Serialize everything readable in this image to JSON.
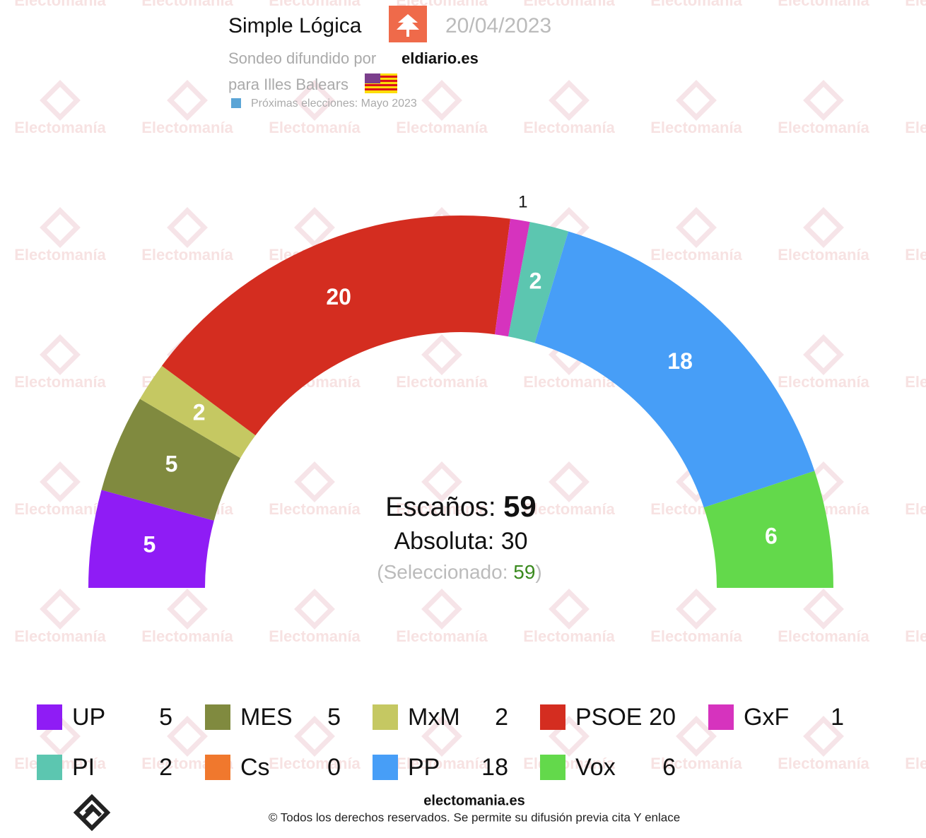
{
  "chart_data": {
    "type": "parliament",
    "pollster": "Simple Lógica",
    "date": "20/04/2023",
    "published_by_label": "Sondeo difundido por",
    "published_by": "eldiario.es",
    "region": "para Illes Balears",
    "next_elections": "Próximas elecciones: Mayo 2023",
    "seats_label": "Escaños:",
    "seats_total": 59,
    "majority_label": "Absoluta:",
    "majority": 30,
    "selected_open": "(Seleccionado:",
    "selected": 59,
    "selected_close": ")",
    "categories": [
      "UP",
      "MES",
      "MxM",
      "PSOE",
      "GxF",
      "PI",
      "Cs",
      "PP",
      "Vox"
    ],
    "values": [
      5,
      5,
      2,
      20,
      1,
      2,
      0,
      18,
      6
    ],
    "colors": [
      "#8f1cf5",
      "#808a3f",
      "#c5c862",
      "#d42d20",
      "#d633be",
      "#5cc6b0",
      "#f0782d",
      "#479ef7",
      "#63d94b"
    ],
    "watermark": "Electomanía",
    "footer_site": "electomania.es",
    "footer_rights": "© Todos los derechos reservados. Se permite su difusión previa cita Y enlace"
  }
}
